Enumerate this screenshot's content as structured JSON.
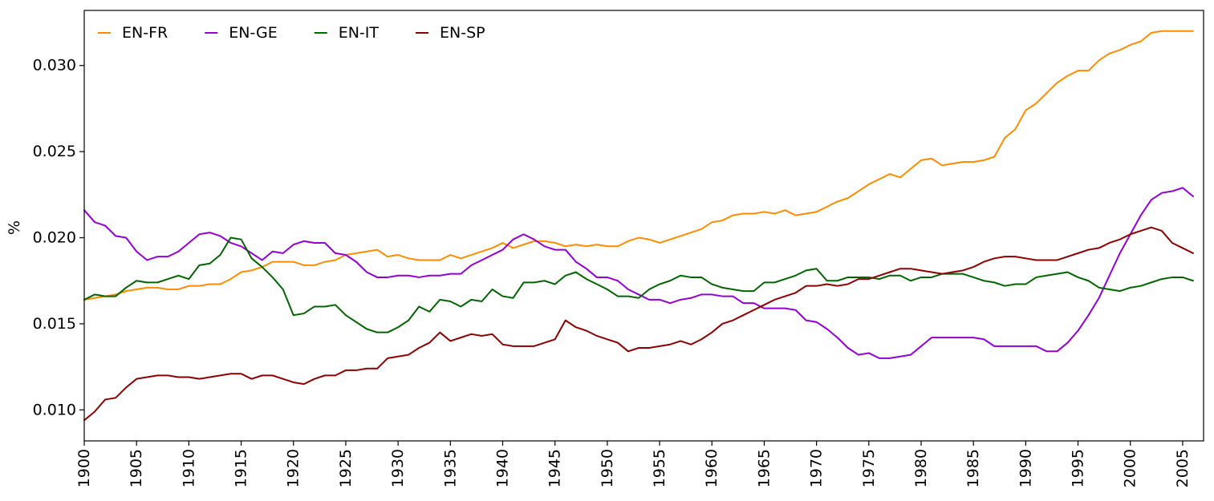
{
  "chart_data": {
    "type": "line",
    "title": "",
    "xlabel": "",
    "ylabel": "%",
    "xlim": [
      1900,
      2007
    ],
    "ylim": [
      0.0082,
      0.0332
    ],
    "grid": false,
    "legend_placement": "top-left",
    "x_ticks": [
      1900,
      1905,
      1910,
      1915,
      1920,
      1925,
      1930,
      1935,
      1940,
      1945,
      1950,
      1955,
      1960,
      1965,
      1970,
      1975,
      1980,
      1985,
      1990,
      1995,
      2000,
      2005
    ],
    "x_tick_labels": [
      "1900",
      "1905",
      "1910",
      "1915",
      "1920",
      "1925",
      "1930",
      "1935",
      "1940",
      "1945",
      "1950",
      "1955",
      "1960",
      "1965",
      "1970",
      "1975",
      "1980",
      "1985",
      "1990",
      "1995",
      "2000",
      "2005"
    ],
    "y_ticks": [
      0.01,
      0.015,
      0.02,
      0.025,
      0.03
    ],
    "y_tick_labels": [
      "0.010",
      "0.015",
      "0.020",
      "0.025",
      "0.030"
    ],
    "x": [
      1900,
      1901,
      1902,
      1903,
      1904,
      1905,
      1906,
      1907,
      1908,
      1909,
      1910,
      1911,
      1912,
      1913,
      1914,
      1915,
      1916,
      1917,
      1918,
      1919,
      1920,
      1921,
      1922,
      1923,
      1924,
      1925,
      1926,
      1927,
      1928,
      1929,
      1930,
      1931,
      1932,
      1933,
      1934,
      1935,
      1936,
      1937,
      1938,
      1939,
      1940,
      1941,
      1942,
      1943,
      1944,
      1945,
      1946,
      1947,
      1948,
      1949,
      1950,
      1951,
      1952,
      1953,
      1954,
      1955,
      1956,
      1957,
      1958,
      1959,
      1960,
      1961,
      1962,
      1963,
      1964,
      1965,
      1966,
      1967,
      1968,
      1969,
      1970,
      1971,
      1972,
      1973,
      1974,
      1975,
      1976,
      1977,
      1978,
      1979,
      1980,
      1981,
      1982,
      1983,
      1984,
      1985,
      1986,
      1987,
      1988,
      1989,
      1990,
      1991,
      1992,
      1993,
      1994,
      1995,
      1996,
      1997,
      1998,
      1999,
      2000,
      2001,
      2002,
      2003,
      2004,
      2005,
      2006
    ],
    "series": [
      {
        "name": "EN-FR",
        "color": "#ff8c00",
        "values": [
          0.0164,
          0.0165,
          0.0166,
          0.0167,
          0.0169,
          0.017,
          0.0171,
          0.0171,
          0.017,
          0.017,
          0.0172,
          0.0172,
          0.0173,
          0.0173,
          0.0176,
          0.018,
          0.0181,
          0.0183,
          0.0186,
          0.0186,
          0.0186,
          0.0184,
          0.0184,
          0.0186,
          0.0187,
          0.019,
          0.0191,
          0.0192,
          0.0193,
          0.0189,
          0.019,
          0.0188,
          0.0187,
          0.0187,
          0.0187,
          0.019,
          0.0188,
          0.019,
          0.0192,
          0.0194,
          0.0197,
          0.0194,
          0.0196,
          0.0198,
          0.0198,
          0.0197,
          0.0195,
          0.0196,
          0.0195,
          0.0196,
          0.0195,
          0.0195,
          0.0198,
          0.02,
          0.0199,
          0.0197,
          0.0199,
          0.0201,
          0.0203,
          0.0205,
          0.0209,
          0.021,
          0.0213,
          0.0214,
          0.0214,
          0.0215,
          0.0214,
          0.0216,
          0.0213,
          0.0214,
          0.0215,
          0.0218,
          0.0221,
          0.0223,
          0.0227,
          0.0231,
          0.0234,
          0.0237,
          0.0235,
          0.024,
          0.0245,
          0.0246,
          0.0242,
          0.0243,
          0.0244,
          0.0244,
          0.0245,
          0.0247,
          0.0258,
          0.0263,
          0.0274,
          0.0278,
          0.0284,
          0.029,
          0.0294,
          0.0297,
          0.0297,
          0.0303,
          0.0307,
          0.0309,
          0.0312,
          0.0314,
          0.0319,
          0.032,
          0.032,
          0.032,
          0.032
        ]
      },
      {
        "name": "EN-GE",
        "color": "#9400d3",
        "values": [
          0.0216,
          0.0209,
          0.0207,
          0.0201,
          0.02,
          0.0192,
          0.0187,
          0.0189,
          0.0189,
          0.0192,
          0.0197,
          0.0202,
          0.0203,
          0.0201,
          0.0197,
          0.0195,
          0.0191,
          0.0187,
          0.0192,
          0.0191,
          0.0196,
          0.0198,
          0.0197,
          0.0197,
          0.0191,
          0.019,
          0.0186,
          0.018,
          0.0177,
          0.0177,
          0.0178,
          0.0178,
          0.0177,
          0.0178,
          0.0178,
          0.0179,
          0.0179,
          0.0184,
          0.0187,
          0.019,
          0.0193,
          0.0199,
          0.0202,
          0.0199,
          0.0195,
          0.0193,
          0.0193,
          0.0186,
          0.0182,
          0.0177,
          0.0177,
          0.0175,
          0.017,
          0.0167,
          0.0164,
          0.0164,
          0.0162,
          0.0164,
          0.0165,
          0.0167,
          0.0167,
          0.0166,
          0.0166,
          0.0162,
          0.0162,
          0.0159,
          0.0159,
          0.0159,
          0.0158,
          0.0152,
          0.0151,
          0.0147,
          0.0142,
          0.0136,
          0.0132,
          0.0133,
          0.013,
          0.013,
          0.0131,
          0.0132,
          0.0137,
          0.0142,
          0.0142,
          0.0142,
          0.0142,
          0.0142,
          0.0141,
          0.0137,
          0.0137,
          0.0137,
          0.0137,
          0.0137,
          0.0134,
          0.0134,
          0.0139,
          0.0146,
          0.0155,
          0.0165,
          0.0178,
          0.0191,
          0.0202,
          0.0213,
          0.0222,
          0.0226,
          0.0227,
          0.0229,
          0.0224
        ]
      },
      {
        "name": "EN-IT",
        "color": "#006400",
        "values": [
          0.0164,
          0.0167,
          0.0166,
          0.0166,
          0.0171,
          0.0175,
          0.0174,
          0.0174,
          0.0176,
          0.0178,
          0.0176,
          0.0184,
          0.0185,
          0.019,
          0.02,
          0.0199,
          0.0188,
          0.0183,
          0.0177,
          0.017,
          0.0155,
          0.0156,
          0.016,
          0.016,
          0.0161,
          0.0155,
          0.0151,
          0.0147,
          0.0145,
          0.0145,
          0.0148,
          0.0152,
          0.016,
          0.0157,
          0.0164,
          0.0163,
          0.016,
          0.0164,
          0.0163,
          0.017,
          0.0166,
          0.0165,
          0.0174,
          0.0174,
          0.0175,
          0.0173,
          0.0178,
          0.018,
          0.0176,
          0.0173,
          0.017,
          0.0166,
          0.0166,
          0.0165,
          0.017,
          0.0173,
          0.0175,
          0.0178,
          0.0177,
          0.0177,
          0.0173,
          0.0171,
          0.017,
          0.0169,
          0.0169,
          0.0174,
          0.0174,
          0.0176,
          0.0178,
          0.0181,
          0.0182,
          0.0175,
          0.0175,
          0.0177,
          0.0177,
          0.0177,
          0.0176,
          0.0178,
          0.0178,
          0.0175,
          0.0177,
          0.0177,
          0.0179,
          0.0179,
          0.0179,
          0.0177,
          0.0175,
          0.0174,
          0.0172,
          0.0173,
          0.0173,
          0.0177,
          0.0178,
          0.0179,
          0.018,
          0.0177,
          0.0175,
          0.0171,
          0.017,
          0.0169,
          0.0171,
          0.0172,
          0.0174,
          0.0176,
          0.0177,
          0.0177,
          0.0175
        ]
      },
      {
        "name": "EN-SP",
        "color": "#8b0000",
        "values": [
          0.0094,
          0.0099,
          0.0106,
          0.0107,
          0.0113,
          0.0118,
          0.0119,
          0.012,
          0.012,
          0.0119,
          0.0119,
          0.0118,
          0.0119,
          0.012,
          0.0121,
          0.0121,
          0.0118,
          0.012,
          0.012,
          0.0118,
          0.0116,
          0.0115,
          0.0118,
          0.012,
          0.012,
          0.0123,
          0.0123,
          0.0124,
          0.0124,
          0.013,
          0.0131,
          0.0132,
          0.0136,
          0.0139,
          0.0145,
          0.014,
          0.0142,
          0.0144,
          0.0143,
          0.0144,
          0.0138,
          0.0137,
          0.0137,
          0.0137,
          0.0139,
          0.0141,
          0.0152,
          0.0148,
          0.0146,
          0.0143,
          0.0141,
          0.0139,
          0.0134,
          0.0136,
          0.0136,
          0.0137,
          0.0138,
          0.014,
          0.0138,
          0.0141,
          0.0145,
          0.015,
          0.0152,
          0.0155,
          0.0158,
          0.0161,
          0.0164,
          0.0166,
          0.0168,
          0.0172,
          0.0172,
          0.0173,
          0.0172,
          0.0173,
          0.0176,
          0.0176,
          0.0178,
          0.018,
          0.0182,
          0.0182,
          0.0181,
          0.018,
          0.0179,
          0.018,
          0.0181,
          0.0183,
          0.0186,
          0.0188,
          0.0189,
          0.0189,
          0.0188,
          0.0187,
          0.0187,
          0.0187,
          0.0189,
          0.0191,
          0.0193,
          0.0194,
          0.0197,
          0.0199,
          0.0202,
          0.0204,
          0.0206,
          0.0204,
          0.0197,
          0.0194,
          0.0191
        ]
      }
    ]
  }
}
